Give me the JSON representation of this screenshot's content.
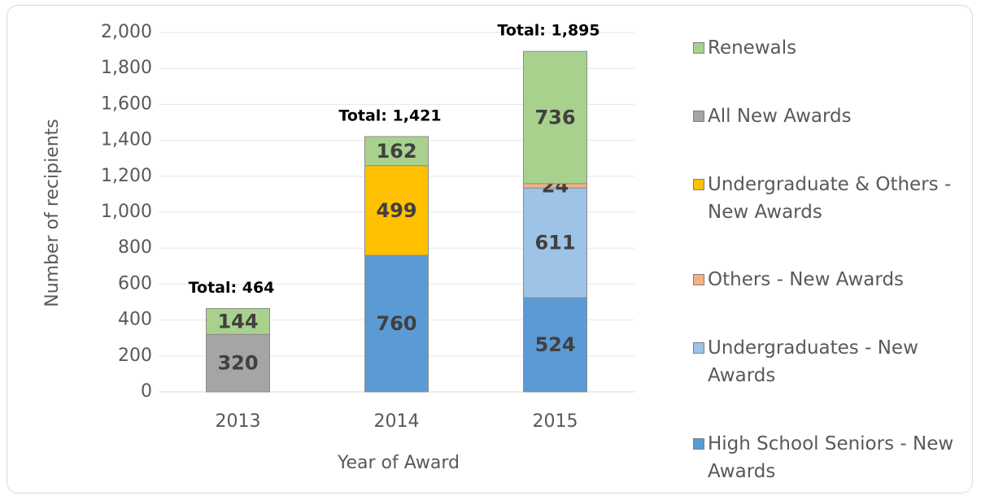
{
  "chart_data": {
    "type": "stacked_bar",
    "x_label": "Year of Award",
    "y_label": "Number of recipients",
    "categories": [
      "2013",
      "2014",
      "2015"
    ],
    "series": [
      {
        "name": "High School Seniors - New Awards",
        "color": "#5b9bd5",
        "values": [
          null,
          760,
          524
        ]
      },
      {
        "name": "Undergraduates - New Awards",
        "color": "#9dc3e6",
        "values": [
          null,
          null,
          611
        ]
      },
      {
        "name": "Others - New Awards",
        "color": "#f4b183",
        "values": [
          null,
          null,
          24
        ]
      },
      {
        "name": "Undergraduate & Others - New Awards",
        "color": "#ffc000",
        "values": [
          null,
          499,
          null
        ]
      },
      {
        "name": "All New Awards",
        "color": "#a5a5a5",
        "values": [
          320,
          null,
          null
        ]
      },
      {
        "name": "Renewals",
        "color": "#a9d18e",
        "values": [
          144,
          162,
          736
        ]
      }
    ],
    "totals": [
      464,
      1421,
      1895
    ],
    "total_labels": [
      "Total:  464",
      "Total:  1,421",
      "Total:  1,895"
    ],
    "ylim": [
      0,
      2000
    ],
    "yticks": [
      0,
      200,
      400,
      600,
      800,
      {
        "value": 1000,
        "label": "1,000"
      },
      {
        "value": 1200,
        "label": "1,200"
      },
      {
        "value": 1400,
        "label": "1,400"
      },
      {
        "value": 1600,
        "label": "1,600"
      },
      {
        "value": 1800,
        "label": "1,800"
      },
      {
        "value": 2000,
        "label": "2,000"
      }
    ],
    "grid": true,
    "legend": "right"
  }
}
